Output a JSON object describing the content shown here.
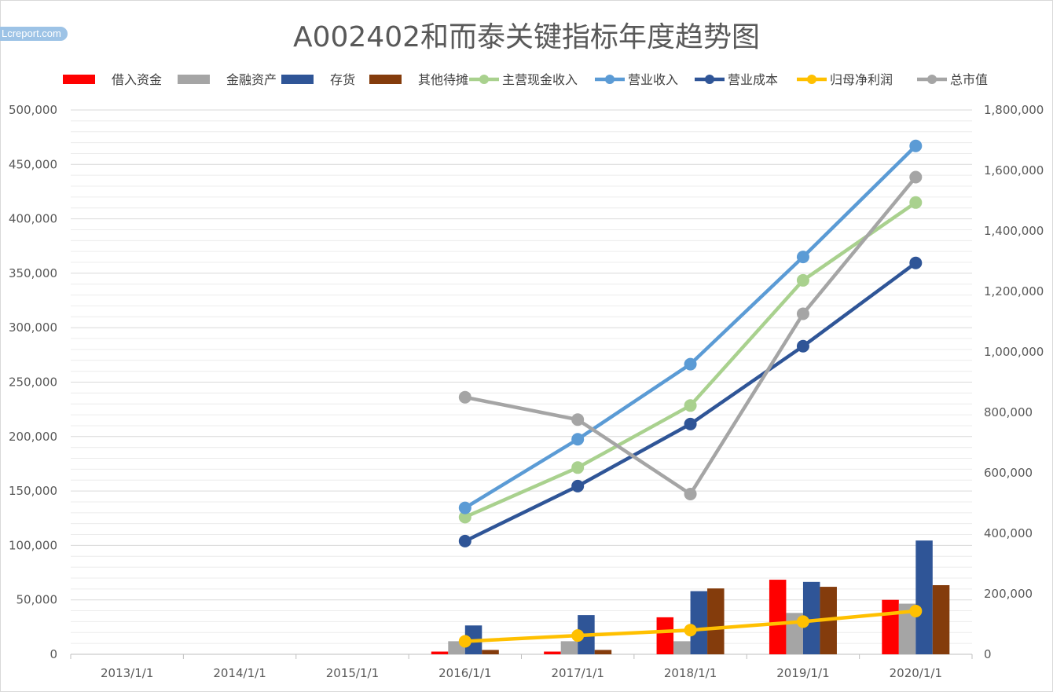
{
  "watermark": "Lcreport.com",
  "chart_data": {
    "type": "bar+line",
    "title": "A002402和而泰关键指标年度趋势图",
    "categories": [
      "2013/1/1",
      "2014/1/1",
      "2015/1/1",
      "2016/1/1",
      "2017/1/1",
      "2018/1/1",
      "2019/1/1",
      "2020/1/1"
    ],
    "y_left": {
      "min": 0,
      "max": 500000,
      "step": 50000,
      "tick_labels": [
        "0",
        "50,000",
        "100,000",
        "150,000",
        "200,000",
        "250,000",
        "300,000",
        "350,000",
        "400,000",
        "450,000",
        "500,000"
      ]
    },
    "y_right": {
      "min": 0,
      "max": 1800000,
      "step": 200000,
      "tick_labels": [
        "0",
        "200,000",
        "400,000",
        "600,000",
        "800,000",
        "1,000,000",
        "1,200,000",
        "1,400,000",
        "1,600,000",
        "1,800,000"
      ]
    },
    "grid": true,
    "legend_position": "top",
    "bar_series": [
      {
        "name": "借入资金",
        "color": "#ff0000",
        "axis": "left",
        "values": [
          null,
          null,
          null,
          2500,
          2500,
          34000,
          68500,
          50000
        ]
      },
      {
        "name": "金融资产",
        "color": "#a5a5a5",
        "axis": "left",
        "values": [
          null,
          null,
          null,
          12000,
          12000,
          12000,
          38000,
          46500
        ]
      },
      {
        "name": "存货",
        "color": "#2f5597",
        "axis": "left",
        "values": [
          null,
          null,
          null,
          26500,
          36000,
          58000,
          66500,
          104500
        ]
      },
      {
        "name": "其他待摊",
        "color": "#843c0c",
        "axis": "left",
        "values": [
          null,
          null,
          null,
          4000,
          4000,
          60500,
          62000,
          63500
        ]
      }
    ],
    "line_series": [
      {
        "name": "主营现金收入",
        "color": "#a9d18e",
        "axis": "left",
        "values": [
          null,
          null,
          null,
          126000,
          171500,
          228500,
          343500,
          415000
        ]
      },
      {
        "name": "营业收入",
        "color": "#5b9bd5",
        "axis": "left",
        "values": [
          null,
          null,
          null,
          134500,
          197500,
          266500,
          365000,
          467000
        ]
      },
      {
        "name": "营业成本",
        "color": "#2f5597",
        "axis": "left",
        "values": [
          null,
          null,
          null,
          104000,
          154500,
          211500,
          283000,
          359500
        ]
      },
      {
        "name": "归母净利润",
        "color": "#ffc000",
        "axis": "right",
        "values": [
          null,
          null,
          null,
          43000,
          62000,
          80000,
          108000,
          143000
        ]
      },
      {
        "name": "总市值",
        "color": "#a5a5a5",
        "axis": "right",
        "values": [
          null,
          null,
          null,
          850000,
          776000,
          530000,
          1126000,
          1578000
        ]
      }
    ]
  }
}
